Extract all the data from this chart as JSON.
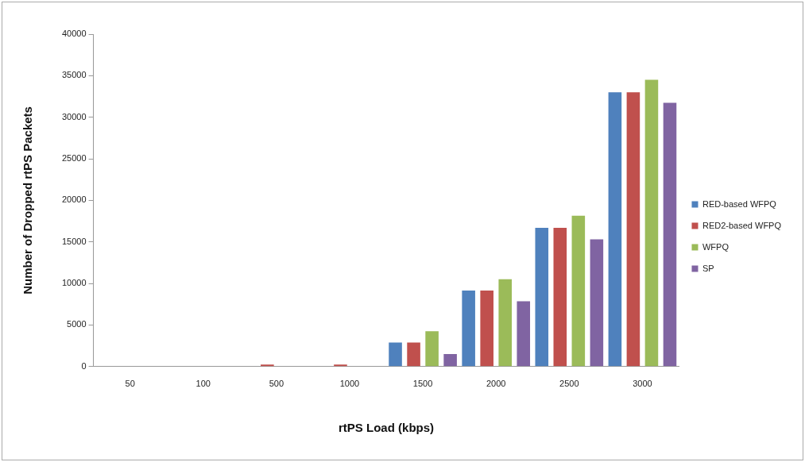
{
  "chart_data": {
    "type": "bar",
    "xlabel": "rtPS Load (kbps)",
    "ylabel": "Number of Dropped rtPS Packets",
    "categories": [
      "50",
      "100",
      "500",
      "1000",
      "1500",
      "2000",
      "2500",
      "3000"
    ],
    "series": [
      {
        "name": "RED-based WFPQ",
        "color": "#4f81bd",
        "values": [
          0,
          0,
          50,
          50,
          2900,
          9150,
          16700,
          33000
        ]
      },
      {
        "name": "RED2-based WFPQ",
        "color": "#c0504d",
        "values": [
          0,
          0,
          250,
          250,
          2900,
          9150,
          16700,
          33000
        ]
      },
      {
        "name": "WFPQ",
        "color": "#9bbb59",
        "values": [
          0,
          0,
          0,
          0,
          4250,
          10500,
          18150,
          34500
        ]
      },
      {
        "name": "SP",
        "color": "#8064a2",
        "values": [
          0,
          0,
          50,
          50,
          1500,
          7850,
          15300,
          31750
        ]
      }
    ],
    "ylim": [
      0,
      40000
    ],
    "yticks": [
      0,
      5000,
      10000,
      15000,
      20000,
      25000,
      30000,
      35000,
      40000
    ],
    "grid": false,
    "legend": "right"
  }
}
